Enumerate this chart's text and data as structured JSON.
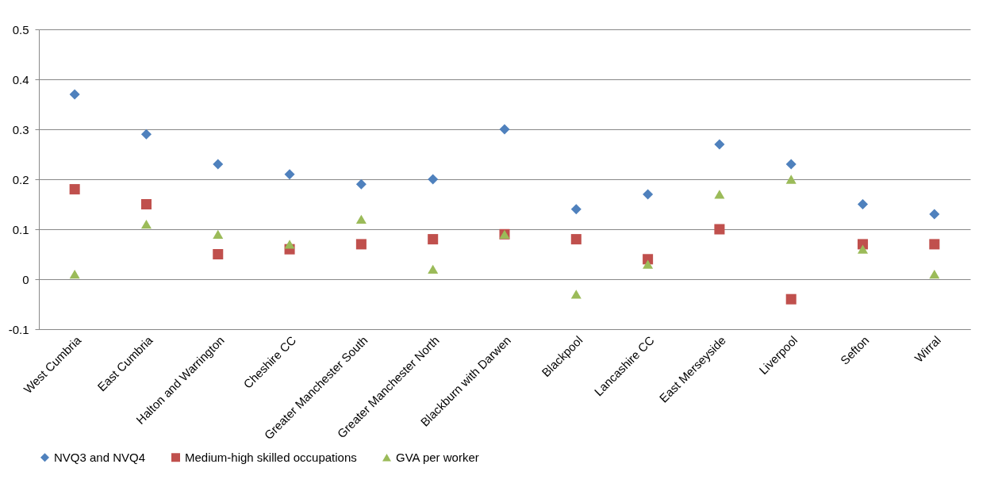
{
  "chart_data": {
    "type": "scatter",
    "categories": [
      "West Cumbria",
      "East Cumbria",
      "Halton and Warrington",
      "Cheshire CC",
      "Greater Manchester South",
      "Greater Manchester North",
      "Blackburn with Darwen",
      "Blackpool",
      "Lancashire CC",
      "East Merseyside",
      "Liverpool",
      "Sefton",
      "Wirral"
    ],
    "series": [
      {
        "name": "NVQ3 and NVQ4",
        "color": "#4f81bd",
        "marker": "diamond",
        "values": [
          0.37,
          0.29,
          0.23,
          0.21,
          0.19,
          0.2,
          0.3,
          0.14,
          0.17,
          0.27,
          0.23,
          0.15,
          0.13
        ]
      },
      {
        "name": "Medium-high skilled occupations",
        "color": "#c0504d",
        "marker": "square",
        "values": [
          0.18,
          0.15,
          0.05,
          0.06,
          0.07,
          0.08,
          0.09,
          0.08,
          0.04,
          0.1,
          -0.04,
          0.07,
          0.07
        ]
      },
      {
        "name": "GVA per worker",
        "color": "#9bbb59",
        "marker": "triangle",
        "values": [
          0.01,
          0.11,
          0.09,
          0.07,
          0.12,
          0.02,
          0.09,
          -0.03,
          0.03,
          0.17,
          0.2,
          0.06,
          0.01
        ]
      }
    ],
    "ylim": [
      -0.1,
      0.5
    ],
    "yticks": [
      -0.1,
      0,
      0.1,
      0.2,
      0.3,
      0.4,
      0.5
    ],
    "grid": "y",
    "legend": "bottom"
  }
}
